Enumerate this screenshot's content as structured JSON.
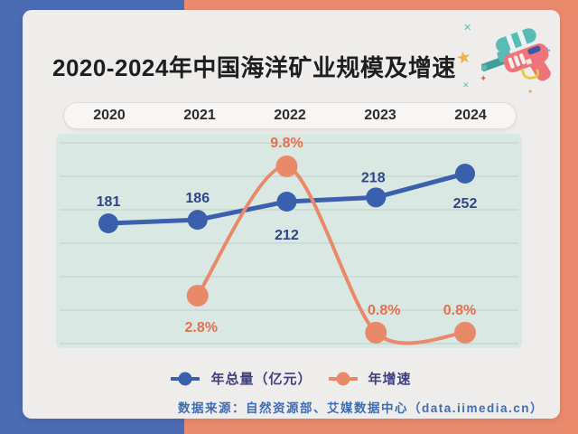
{
  "colors": {
    "bg-left": "#4b6bb4",
    "bg-right": "#e98a6d",
    "card": "#eeedeb",
    "chart-bg": "#d9e8e3",
    "gridline": "#bccfc9",
    "pill-bg": "#f7f6f4",
    "pill-border": "#dfdcd7",
    "title-text": "#1e1e1e",
    "year-text": "#2c2c2c",
    "legend-text": "#3e3e80",
    "source-text": "#3c6cb4"
  },
  "header": {
    "title": "2020-2024年中国海洋矿业规模及增速"
  },
  "chart_data": {
    "type": "line",
    "title": "2020-2024年中国海洋矿业规模及增速",
    "categories": [
      "2020",
      "2021",
      "2022",
      "2023",
      "2024"
    ],
    "series": [
      {
        "name": "年总量（亿元）",
        "values": [
          181,
          186,
          212,
          218,
          252
        ],
        "unit": "",
        "color": "#3a5fad",
        "label_color": "#2d4587",
        "style": "straight"
      },
      {
        "name": "年增速",
        "values": [
          null,
          2.8,
          9.8,
          0.8,
          0.8
        ],
        "unit": "%",
        "color": "#e9896a",
        "label_color": "#e56f4d",
        "style": "smooth"
      }
    ],
    "xlabel": "",
    "ylabel": "",
    "grid": true,
    "gridline_count": 7,
    "legend_position": "bottom",
    "value_labels": true
  },
  "source": {
    "text": "数据来源：自然资源部、艾媒数据中心（data.iimedia.cn）"
  },
  "decoration": {
    "watergun": "water-gun-toy",
    "sparkles": [
      "✕",
      "★",
      "✦",
      "✕",
      "✚",
      "●"
    ]
  }
}
